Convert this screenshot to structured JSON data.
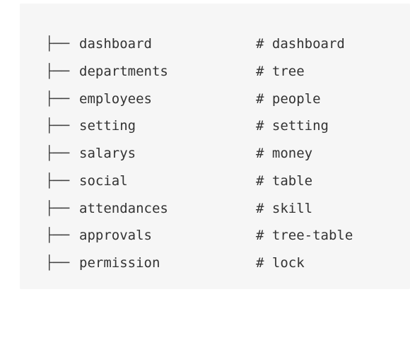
{
  "tree": {
    "branch_glyph": "├──",
    "comment_prefix": "#",
    "items": [
      {
        "name": "dashboard",
        "comment": "# dashboard"
      },
      {
        "name": "departments",
        "comment": "# tree"
      },
      {
        "name": "employees",
        "comment": "# people"
      },
      {
        "name": "setting",
        "comment": "# setting"
      },
      {
        "name": "salarys",
        "comment": "# money"
      },
      {
        "name": "social",
        "comment": "# table"
      },
      {
        "name": "attendances",
        "comment": "# skill"
      },
      {
        "name": "approvals",
        "comment": "# tree-table"
      },
      {
        "name": "permission",
        "comment": "# lock"
      }
    ]
  }
}
